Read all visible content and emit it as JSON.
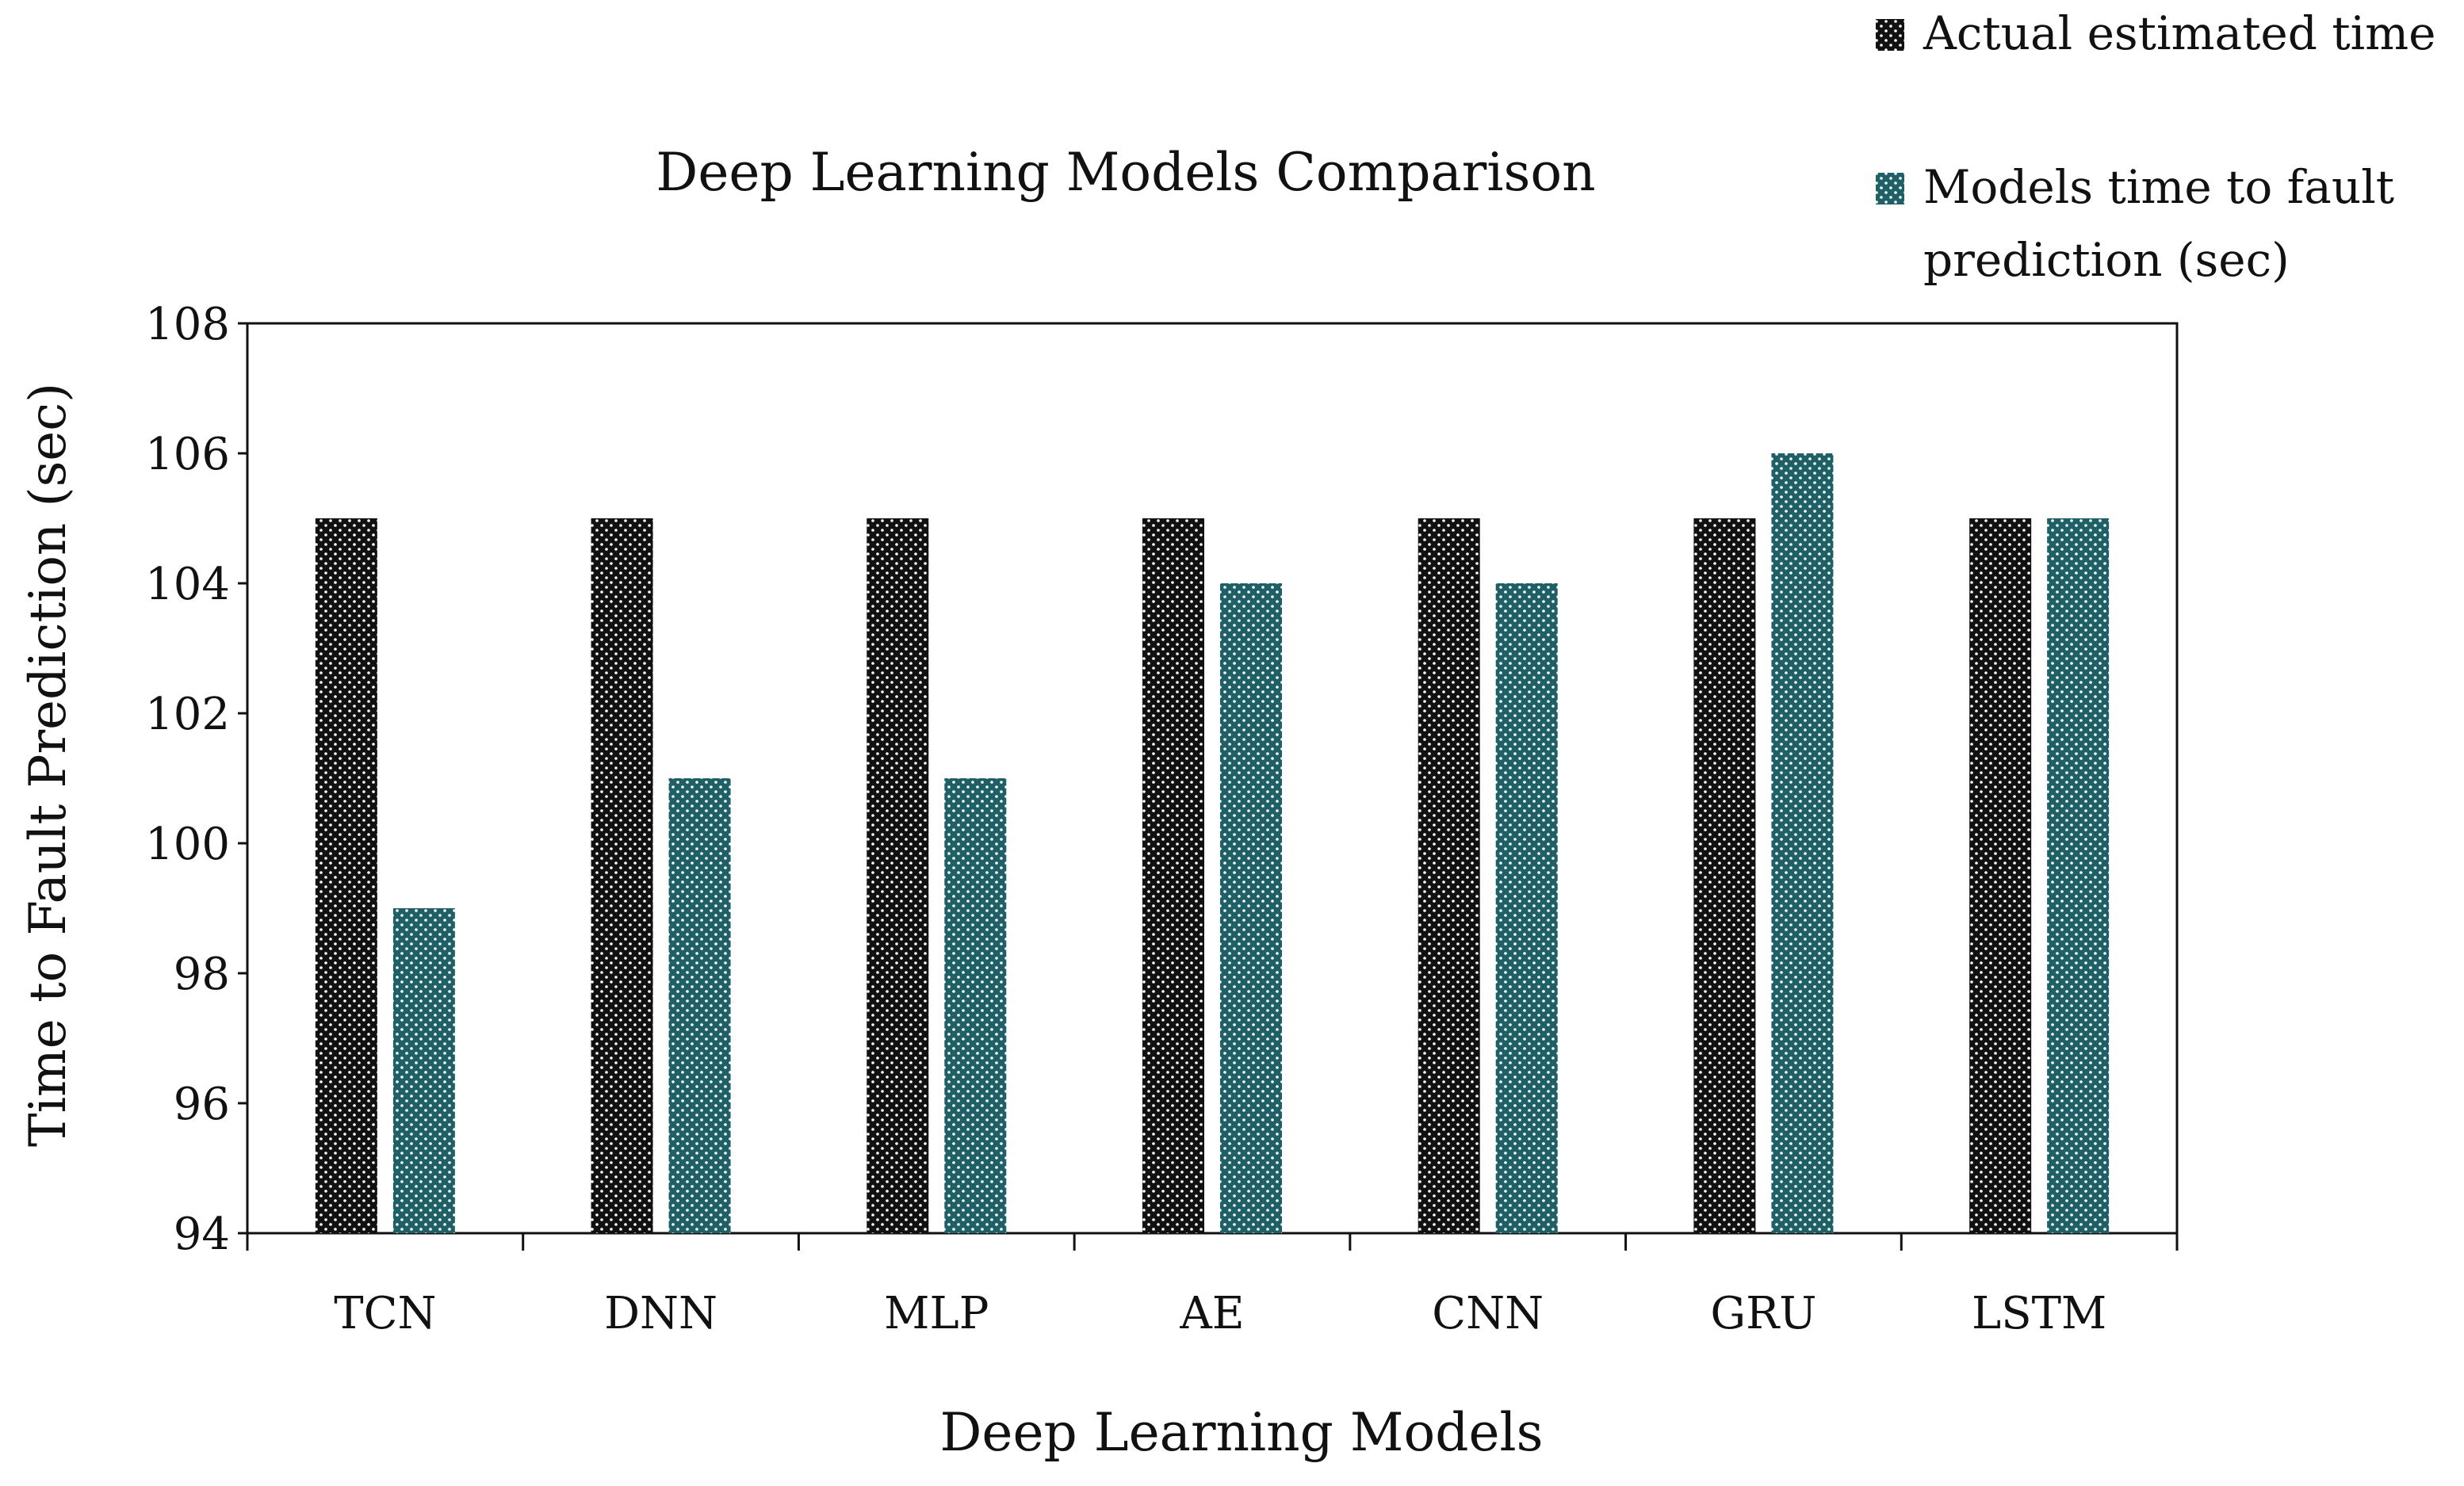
{
  "chart_data": {
    "type": "bar",
    "title": "Deep Learning Models Comparison",
    "xlabel": "Deep Learning Models",
    "ylabel": "Time to Fault Prediction (sec)",
    "categories": [
      "TCN",
      "DNN",
      "MLP",
      "AE",
      "CNN",
      "GRU",
      "LSTM"
    ],
    "series": [
      {
        "name": "Actual estimated time",
        "color": "#111111",
        "values": [
          105,
          105,
          105,
          105,
          105,
          105,
          105
        ]
      },
      {
        "name": "Models time to fault prediction (sec)",
        "legend_lines": [
          "Models time to fault",
          "prediction (sec)"
        ],
        "color": "#1f5f66",
        "values": [
          99,
          101,
          101,
          104,
          104,
          106,
          105
        ]
      }
    ],
    "ylim": [
      94,
      108
    ],
    "yticks": [
      94,
      96,
      98,
      100,
      102,
      104,
      106,
      108
    ],
    "grid": false,
    "legend_position": "top-right"
  }
}
